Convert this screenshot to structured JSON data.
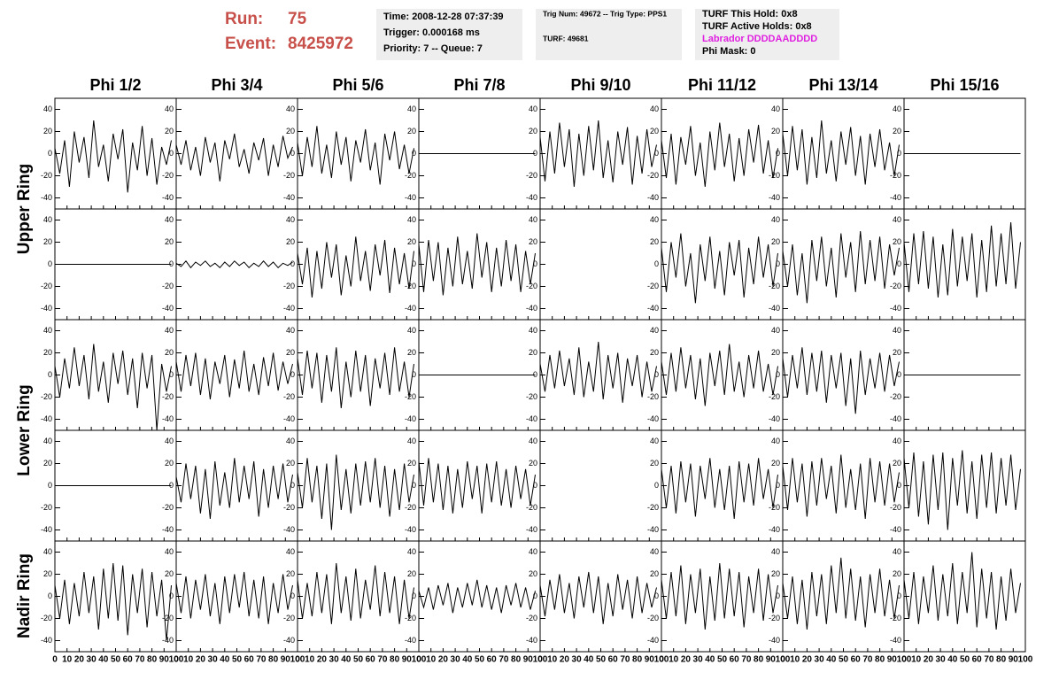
{
  "header": {
    "run_label": "Run:",
    "run": "75",
    "event_label": "Event:",
    "event": "8425972",
    "box1": [
      "Time: 2008-12-28 07:37:39",
      "Trigger: 0.000168 ms",
      "Priority: 7 -- Queue: 7"
    ],
    "box2": [
      "Trig Num: 49672 -- Trig Type: PPS1",
      "TURF: 49681"
    ],
    "box3": [
      "TURF This Hold: 0x8",
      "TURF Active Holds: 0x8",
      "Labrador DDDDAADDDD",
      "Phi Mask: 0"
    ]
  },
  "chart_data": {
    "type": "waveform",
    "columns": [
      "Phi 1/2",
      "Phi 3/4",
      "Phi 5/6",
      "Phi 7/8",
      "Phi 9/10",
      "Phi 11/12",
      "Phi 13/14",
      "Phi 15/16"
    ],
    "rings": [
      "Upper Ring",
      "Lower Ring",
      "Nadir Ring"
    ],
    "color": "#000000",
    "xlim": [
      0,
      100
    ],
    "xticks": [
      0,
      10,
      20,
      30,
      40,
      50,
      60,
      70,
      80,
      90,
      100
    ],
    "ylim": [
      -50,
      50
    ],
    "yticks": [
      -40,
      -20,
      0,
      20,
      40
    ],
    "x": [
      0,
      4,
      8,
      12,
      16,
      20,
      24,
      28,
      32,
      36,
      40,
      44,
      48,
      52,
      56,
      60,
      64,
      68,
      72,
      76,
      80,
      84,
      88,
      92,
      96
    ],
    "panels": [
      [
        {
          "values": [
            5,
            -18,
            12,
            -30,
            20,
            -8,
            15,
            -22,
            30,
            -12,
            8,
            -25,
            18,
            -5,
            22,
            -35,
            10,
            -15,
            25,
            -20,
            14,
            -28,
            6,
            -10,
            12
          ]
        },
        {
          "values": [
            8,
            -10,
            12,
            -15,
            6,
            -20,
            15,
            -8,
            10,
            -25,
            12,
            -5,
            18,
            -12,
            4,
            -18,
            10,
            -6,
            14,
            -20,
            8,
            -12,
            16,
            -4,
            6
          ]
        },
        {
          "values": [
            10,
            -20,
            15,
            -12,
            25,
            -18,
            8,
            -22,
            20,
            -10,
            15,
            -25,
            12,
            -8,
            22,
            -15,
            10,
            -28,
            18,
            -6,
            20,
            -14,
            8,
            -18,
            5
          ]
        },
        {
          "values": [
            0,
            0,
            0,
            0,
            0,
            0,
            0,
            0,
            0,
            0,
            0,
            0,
            0,
            0,
            0,
            0,
            0,
            0,
            0,
            0,
            0,
            0,
            0,
            0,
            0
          ]
        },
        {
          "values": [
            15,
            -25,
            20,
            -18,
            28,
            -12,
            22,
            -30,
            18,
            -20,
            25,
            -15,
            30,
            -22,
            12,
            -26,
            20,
            -10,
            24,
            -28,
            16,
            -18,
            22,
            -12,
            8
          ]
        },
        {
          "values": [
            12,
            -22,
            18,
            -28,
            15,
            -10,
            25,
            -20,
            10,
            -30,
            20,
            -15,
            28,
            -12,
            18,
            -25,
            14,
            -20,
            22,
            -8,
            26,
            -18,
            12,
            -22,
            5
          ]
        },
        {
          "values": [
            18,
            -20,
            25,
            -15,
            22,
            -28,
            15,
            -22,
            30,
            -18,
            12,
            -25,
            20,
            -10,
            24,
            -20,
            16,
            -28,
            18,
            -12,
            22,
            -15,
            10,
            -20,
            8
          ]
        },
        {
          "values": [
            0,
            0,
            0,
            0,
            0,
            0,
            0,
            0,
            0,
            0,
            0,
            0,
            0,
            0,
            0,
            0,
            0,
            0,
            0,
            0,
            0,
            0,
            0,
            0,
            0
          ]
        }
      ],
      [
        {
          "values": [
            0,
            0,
            0,
            0,
            0,
            0,
            0,
            0,
            0,
            0,
            0,
            0,
            0,
            0,
            0,
            0,
            0,
            0,
            0,
            0,
            0,
            0,
            0,
            0,
            0
          ]
        },
        {
          "values": [
            1,
            -2,
            3,
            -3,
            2,
            -1,
            3,
            -2,
            1,
            -3,
            2,
            -2,
            3,
            -1,
            2,
            -3,
            1,
            -2,
            3,
            -2,
            2,
            -3,
            1,
            -1,
            2
          ]
        },
        {
          "values": [
            10,
            -18,
            15,
            -30,
            12,
            -22,
            20,
            -12,
            18,
            -28,
            8,
            -20,
            25,
            -15,
            12,
            -24,
            18,
            -10,
            22,
            -26,
            15,
            -18,
            10,
            -22,
            12
          ]
        },
        {
          "values": [
            18,
            -25,
            22,
            -15,
            20,
            -28,
            15,
            -20,
            25,
            -18,
            12,
            -22,
            28,
            -12,
            20,
            -25,
            15,
            -20,
            22,
            -15,
            18,
            -25,
            12,
            -18,
            10
          ]
        },
        {
          "values": [
            null,
            null,
            null,
            null,
            null,
            null,
            null,
            null,
            null,
            null,
            null,
            null,
            null,
            null,
            null,
            null,
            null,
            null,
            null,
            null,
            null,
            null,
            null,
            null,
            null
          ]
        },
        {
          "values": [
            15,
            -25,
            20,
            -12,
            28,
            -20,
            10,
            -35,
            18,
            -15,
            25,
            -22,
            12,
            -28,
            20,
            -10,
            22,
            -30,
            15,
            -18,
            25,
            -12,
            18,
            -20,
            10
          ]
        },
        {
          "values": [
            12,
            -20,
            18,
            -28,
            10,
            -35,
            22,
            -15,
            25,
            -20,
            15,
            -30,
            28,
            -12,
            20,
            -25,
            30,
            -18,
            22,
            -15,
            25,
            -22,
            18,
            -10,
            15
          ]
        },
        {
          "values": [
            20,
            -25,
            28,
            -18,
            30,
            -22,
            25,
            -30,
            18,
            -28,
            32,
            -20,
            25,
            -15,
            28,
            -30,
            22,
            -25,
            35,
            -20,
            28,
            -18,
            38,
            -22,
            20
          ]
        }
      ],
      [
        {
          "values": [
            8,
            -20,
            15,
            -12,
            25,
            -10,
            18,
            -22,
            28,
            -15,
            12,
            -25,
            20,
            -8,
            22,
            -18,
            15,
            -30,
            20,
            -12,
            18,
            -50,
            10,
            -15,
            8
          ]
        },
        {
          "values": [
            12,
            -15,
            18,
            -10,
            20,
            -18,
            15,
            -22,
            12,
            -8,
            18,
            -20,
            14,
            -12,
            22,
            -15,
            10,
            -18,
            16,
            -10,
            20,
            -14,
            12,
            -8,
            10
          ]
        },
        {
          "values": [
            15,
            -18,
            22,
            -12,
            20,
            -25,
            18,
            -15,
            25,
            -30,
            12,
            -20,
            22,
            -15,
            18,
            -28,
            15,
            -12,
            20,
            -18,
            25,
            -15,
            12,
            -20,
            10
          ]
        },
        {
          "values": [
            0,
            0,
            0,
            0,
            0,
            0,
            0,
            0,
            0,
            0,
            0,
            0,
            0,
            0,
            0,
            0,
            0,
            0,
            0,
            0,
            0,
            0,
            0,
            0,
            0
          ]
        },
        {
          "values": [
            10,
            -15,
            18,
            -12,
            22,
            -10,
            15,
            -18,
            25,
            -20,
            12,
            -15,
            30,
            -22,
            18,
            -12,
            20,
            -25,
            15,
            -10,
            18,
            -20,
            12,
            -15,
            8
          ]
        },
        {
          "values": [
            12,
            -18,
            20,
            -15,
            25,
            -12,
            18,
            -22,
            15,
            -28,
            20,
            -10,
            22,
            -18,
            28,
            -15,
            12,
            -20,
            18,
            -12,
            22,
            -15,
            10,
            -18,
            8
          ]
        },
        {
          "values": [
            15,
            -20,
            18,
            -12,
            25,
            -18,
            20,
            -15,
            22,
            -25,
            18,
            -12,
            20,
            -28,
            15,
            -35,
            22,
            -18,
            15,
            -12,
            20,
            -15,
            18,
            -10,
            12
          ]
        },
        {
          "values": [
            0,
            0,
            0,
            0,
            0,
            0,
            0,
            0,
            0,
            0,
            0,
            0,
            0,
            0,
            0,
            0,
            0,
            0,
            0,
            0,
            0,
            0,
            0,
            0,
            0
          ]
        }
      ],
      [
        {
          "values": [
            0,
            0,
            0,
            0,
            0,
            0,
            0,
            0,
            0,
            0,
            0,
            0,
            0,
            0,
            0,
            0,
            0,
            0,
            0,
            0,
            0,
            0,
            0,
            0,
            0
          ]
        },
        {
          "values": [
            8,
            -15,
            20,
            -12,
            18,
            -25,
            15,
            -30,
            22,
            -18,
            12,
            -20,
            25,
            -15,
            18,
            -12,
            22,
            -28,
            15,
            -20,
            18,
            -12,
            20,
            -15,
            10
          ]
        },
        {
          "values": [
            12,
            -20,
            25,
            -15,
            18,
            -30,
            20,
            -40,
            28,
            -22,
            15,
            -25,
            20,
            -18,
            22,
            -15,
            25,
            -20,
            18,
            -28,
            15,
            -22,
            20,
            -15,
            10
          ]
        },
        {
          "values": [
            22,
            -18,
            25,
            -15,
            20,
            -22,
            18,
            -25,
            15,
            -20,
            22,
            -12,
            18,
            -25,
            20,
            -15,
            22,
            -18,
            15,
            -20,
            18,
            -12,
            15,
            -18,
            10
          ]
        },
        {
          "values": [
            null,
            null,
            null,
            null,
            null,
            null,
            null,
            null,
            null,
            null,
            null,
            null,
            null,
            null,
            null,
            null,
            null,
            null,
            null,
            null,
            null,
            null,
            null,
            null,
            null
          ]
        },
        {
          "values": [
            15,
            -20,
            18,
            -25,
            22,
            -15,
            20,
            -28,
            18,
            -12,
            25,
            -20,
            15,
            -22,
            18,
            -30,
            22,
            -15,
            20,
            -18,
            25,
            -12,
            15,
            -20,
            10
          ]
        },
        {
          "values": [
            18,
            -22,
            25,
            -15,
            20,
            -28,
            22,
            -18,
            25,
            -12,
            18,
            -25,
            28,
            -20,
            15,
            -22,
            20,
            -30,
            25,
            -15,
            22,
            -18,
            20,
            -15,
            12
          ]
        },
        {
          "values": [
            25,
            -20,
            30,
            -28,
            22,
            -35,
            28,
            -22,
            30,
            -40,
            25,
            -18,
            32,
            -25,
            22,
            -30,
            28,
            -20,
            30,
            -25,
            25,
            -18,
            28,
            -22,
            15
          ]
        }
      ],
      [
        {
          "values": [
            10,
            -20,
            15,
            -25,
            12,
            -18,
            22,
            -15,
            18,
            -30,
            25,
            -20,
            30,
            -22,
            28,
            -35,
            20,
            -15,
            25,
            -28,
            22,
            -18,
            15,
            -40,
            10
          ]
        },
        {
          "values": [
            12,
            -15,
            18,
            -20,
            15,
            -12,
            20,
            -18,
            12,
            -25,
            18,
            -15,
            20,
            -10,
            22,
            -18,
            15,
            -20,
            18,
            -25,
            12,
            -15,
            20,
            -12,
            10
          ]
        },
        {
          "values": [
            15,
            -20,
            12,
            -18,
            22,
            -15,
            20,
            -25,
            30,
            -15,
            18,
            -22,
            25,
            -20,
            15,
            -12,
            28,
            -18,
            22,
            -15,
            18,
            -25,
            15,
            -20,
            8
          ]
        },
        {
          "values": [
            5,
            -10,
            8,
            -12,
            10,
            -8,
            12,
            -15,
            8,
            -10,
            12,
            -8,
            15,
            -10,
            10,
            -12,
            8,
            -15,
            10,
            -8,
            12,
            -10,
            8,
            -12,
            5
          ]
        },
        {
          "values": [
            10,
            -18,
            15,
            -12,
            20,
            -15,
            12,
            -20,
            18,
            -10,
            22,
            -15,
            18,
            -25,
            12,
            -18,
            20,
            -12,
            15,
            -20,
            18,
            -15,
            12,
            -10,
            8
          ]
        },
        {
          "values": [
            15,
            -20,
            22,
            -18,
            28,
            -25,
            20,
            -15,
            25,
            -30,
            18,
            -22,
            30,
            -20,
            25,
            -18,
            22,
            -28,
            18,
            -15,
            25,
            -22,
            20,
            -15,
            10
          ]
        },
        {
          "values": [
            12,
            -20,
            18,
            -25,
            15,
            -30,
            22,
            -18,
            20,
            -25,
            28,
            -15,
            35,
            -20,
            25,
            -22,
            18,
            -28,
            20,
            -15,
            25,
            -18,
            15,
            -20,
            10
          ]
        },
        {
          "values": [
            15,
            -20,
            22,
            -25,
            18,
            -15,
            28,
            -22,
            20,
            -18,
            30,
            -25,
            22,
            -15,
            40,
            -28,
            25,
            -20,
            22,
            -30,
            18,
            -22,
            25,
            -15,
            12
          ]
        }
      ]
    ]
  }
}
